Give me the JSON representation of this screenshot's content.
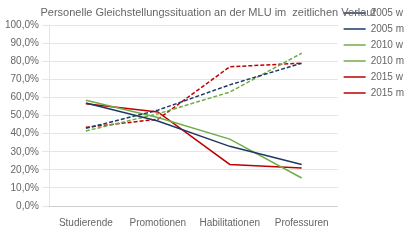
{
  "chart_data": {
    "type": "line",
    "title": "Personelle Gleichstellungssituation an der MLU im  zeitlichen Verlauf",
    "categories": [
      "Studierende",
      "Promotionen",
      "Habilitationen",
      "Professuren"
    ],
    "series": [
      {
        "name": "2005 w",
        "values": [
          0.57,
          0.47,
          0.33,
          0.23
        ],
        "color": "#1f3864",
        "line_style": "solid"
      },
      {
        "name": "2005 m",
        "values": [
          0.43,
          0.53,
          0.67,
          0.79
        ],
        "color": "#1f3864",
        "line_style": "dashed"
      },
      {
        "name": "2010 w",
        "values": [
          0.585,
          0.49,
          0.37,
          0.155
        ],
        "color": "#70ad47",
        "line_style": "solid"
      },
      {
        "name": "2010 m",
        "values": [
          0.415,
          0.51,
          0.63,
          0.845
        ],
        "color": "#70ad47",
        "line_style": "dashed"
      },
      {
        "name": "2015 w",
        "values": [
          0.565,
          0.52,
          0.23,
          0.21
        ],
        "color": "#c00000",
        "line_style": "solid"
      },
      {
        "name": "2015 m",
        "values": [
          0.435,
          0.48,
          0.77,
          0.79
        ],
        "color": "#c00000",
        "line_style": "dashed"
      }
    ],
    "ylim": [
      0.0,
      1.0
    ],
    "yticks": [
      {
        "value": 0.0,
        "label": "0,0%"
      },
      {
        "value": 0.1,
        "label": "10,0%"
      },
      {
        "value": 0.2,
        "label": "20,0%"
      },
      {
        "value": 0.3,
        "label": "30,0%"
      },
      {
        "value": 0.4,
        "label": "40,0%"
      },
      {
        "value": 0.5,
        "label": "50,0%"
      },
      {
        "value": 0.6,
        "label": "60,0%"
      },
      {
        "value": 0.7,
        "label": "70,0%"
      },
      {
        "value": 0.8,
        "label": "80,0%"
      },
      {
        "value": 0.9,
        "label": "90,0%"
      },
      {
        "value": 1.0,
        "label": "100,0%"
      }
    ],
    "grid": "y",
    "legend": "right"
  }
}
